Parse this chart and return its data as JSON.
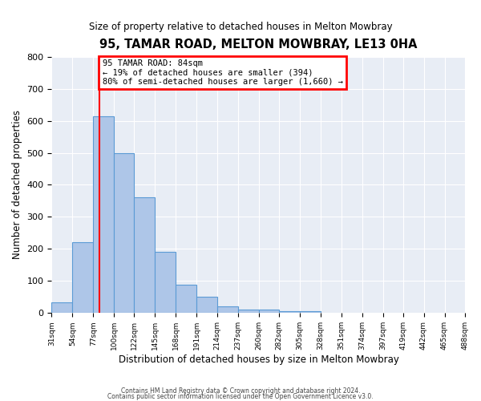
{
  "title": "95, TAMAR ROAD, MELTON MOWBRAY, LE13 0HA",
  "subtitle": "Size of property relative to detached houses in Melton Mowbray",
  "xlabel": "Distribution of detached houses by size in Melton Mowbray",
  "ylabel": "Number of detached properties",
  "bar_edges": [
    31,
    54,
    77,
    100,
    122,
    145,
    168,
    191,
    214,
    237,
    260,
    282,
    305,
    328,
    351,
    374,
    397,
    419,
    442,
    465,
    488
  ],
  "bar_heights": [
    33,
    220,
    615,
    500,
    360,
    190,
    88,
    50,
    22,
    12,
    12,
    5,
    5,
    0,
    0,
    0,
    0,
    0,
    0,
    0
  ],
  "bar_color": "#aec6e8",
  "bar_edge_color": "#5b9bd5",
  "background_color": "#e8edf5",
  "grid_color": "#ffffff",
  "red_line_x": 84,
  "annotation_text_line1": "95 TAMAR ROAD: 84sqm",
  "annotation_text_line2": "← 19% of detached houses are smaller (394)",
  "annotation_text_line3": "80% of semi-detached houses are larger (1,660) →",
  "ylim": [
    0,
    800
  ],
  "yticks": [
    0,
    100,
    200,
    300,
    400,
    500,
    600,
    700,
    800
  ],
  "tick_labels": [
    "31sqm",
    "54sqm",
    "77sqm",
    "100sqm",
    "122sqm",
    "145sqm",
    "168sqm",
    "191sqm",
    "214sqm",
    "237sqm",
    "260sqm",
    "282sqm",
    "305sqm",
    "328sqm",
    "351sqm",
    "374sqm",
    "397sqm",
    "419sqm",
    "442sqm",
    "465sqm",
    "488sqm"
  ],
  "footer_line1": "Contains HM Land Registry data © Crown copyright and database right 2024.",
  "footer_line2": "Contains public sector information licensed under the Open Government Licence v3.0."
}
